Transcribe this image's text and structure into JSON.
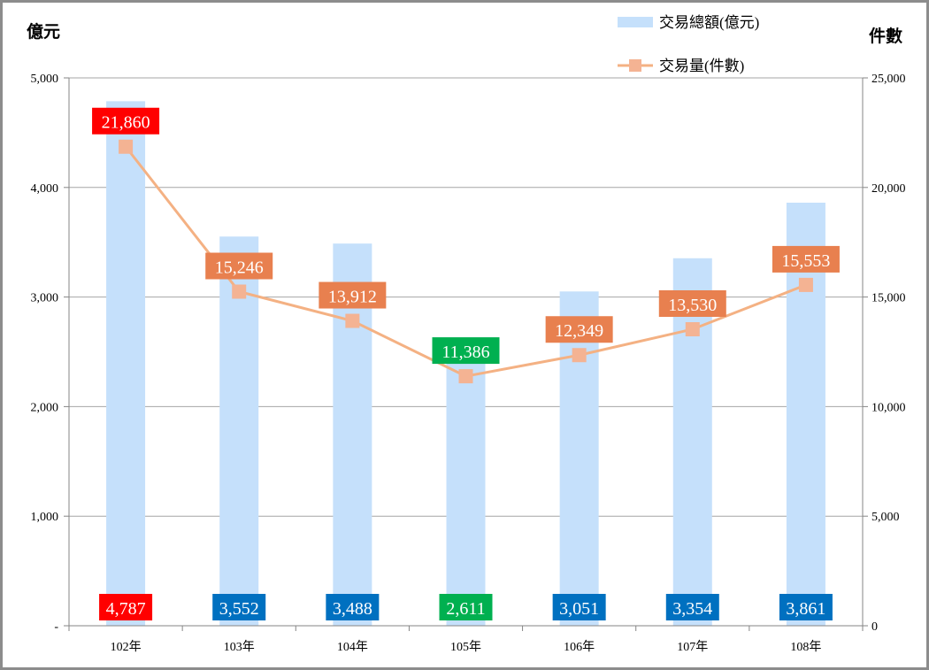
{
  "chart_data": {
    "type": "bar+line",
    "categories": [
      "102年",
      "103年",
      "104年",
      "105年",
      "106年",
      "107年",
      "108年"
    ],
    "series": [
      {
        "name": "交易總額(億元)",
        "type": "bar",
        "axis": "left",
        "values": [
          4787,
          3552,
          3488,
          2611,
          3051,
          3354,
          3861
        ],
        "color": "#c5e0fb",
        "label_colors": [
          "#ff0000",
          "#0070c0",
          "#0070c0",
          "#00b050",
          "#0070c0",
          "#0070c0",
          "#0070c0"
        ],
        "labels": [
          "4,787",
          "3,552",
          "3,488",
          "2,611",
          "3,051",
          "3,354",
          "3,861"
        ]
      },
      {
        "name": "交易量(件數)",
        "type": "line",
        "axis": "right",
        "values": [
          21860,
          15246,
          13912,
          11386,
          12349,
          13530,
          15553
        ],
        "color": "#f4b183",
        "label_colors": [
          "#ff0000",
          "#e8804f",
          "#e8804f",
          "#00b050",
          "#e8804f",
          "#e8804f",
          "#e8804f"
        ],
        "labels": [
          "21,860",
          "15,246",
          "13,912",
          "11,386",
          "12,349",
          "13,530",
          "15,553"
        ]
      }
    ],
    "left_axis": {
      "label": "億元",
      "ylim": [
        0,
        5000
      ],
      "ticks": [
        0,
        1000,
        2000,
        3000,
        4000,
        5000
      ],
      "tick_labels": [
        "-",
        "1,000",
        "2,000",
        "3,000",
        "4,000",
        "5,000"
      ]
    },
    "right_axis": {
      "label": "件數",
      "ylim": [
        0,
        25000
      ],
      "ticks": [
        0,
        5000,
        10000,
        15000,
        20000,
        25000
      ],
      "tick_labels": [
        "0",
        "5,000",
        "10,000",
        "15,000",
        "20,000",
        "25,000"
      ]
    },
    "grid": true,
    "legend": {
      "placement": "top-right",
      "entries": [
        "交易總額(億元)",
        "交易量(件數)"
      ]
    }
  }
}
